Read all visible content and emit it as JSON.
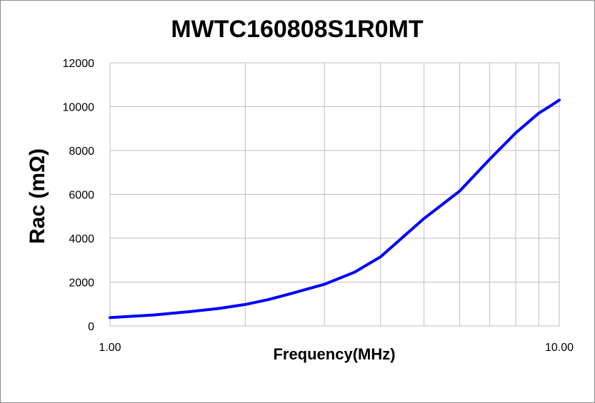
{
  "chart_data": {
    "type": "line",
    "title": "MWTC160808S1R0MT",
    "xlabel": "Frequency(MHz)",
    "ylabel": "Rac (mΩ)",
    "x_scale": "log",
    "xlim": [
      1,
      10
    ],
    "ylim": [
      0,
      12000
    ],
    "x_tick_labels": [
      "1.00",
      "10.00"
    ],
    "y_ticks": [
      0,
      2000,
      4000,
      6000,
      8000,
      10000,
      12000
    ],
    "y_tick_labels": [
      "0",
      "2000",
      "4000",
      "6000",
      "8000",
      "10000",
      "12000"
    ],
    "grid": true,
    "legend": "none",
    "line_color": "#0000ff",
    "series": [
      {
        "x": [
          1.0,
          1.25,
          1.5,
          1.75,
          2.0,
          2.25,
          2.5,
          3.0,
          3.5,
          4.0,
          5.0,
          6.0,
          7.0,
          8.0,
          9.0,
          9.5,
          10.0
        ],
        "values": [
          380,
          500,
          650,
          800,
          980,
          1200,
          1450,
          1900,
          2450,
          3150,
          4900,
          6150,
          7600,
          8800,
          9700,
          10000,
          10300
        ]
      }
    ]
  }
}
